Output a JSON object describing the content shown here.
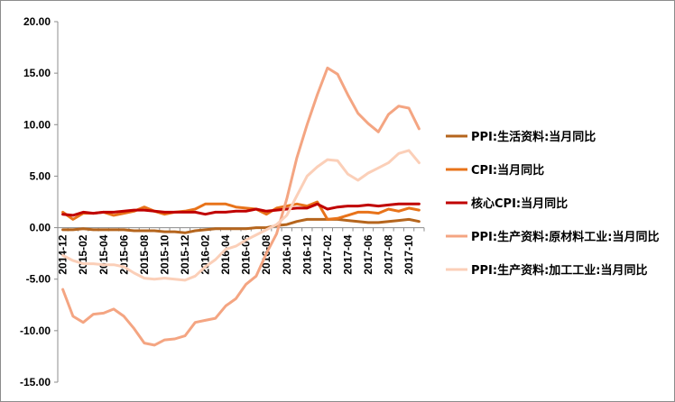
{
  "chart_data": {
    "type": "line",
    "title": "",
    "xlabel": "",
    "ylabel": "",
    "ylim": [
      -15,
      20
    ],
    "yticks": [
      20,
      15,
      10,
      5,
      0,
      -5,
      -10,
      -15
    ],
    "ytick_labels": [
      "20.00",
      "15.00",
      "10.00",
      "5.00",
      "0.00",
      "-5.00",
      "-10.00",
      "-15.00"
    ],
    "x": [
      "2014-12",
      "2015-01",
      "2015-02",
      "2015-03",
      "2015-04",
      "2015-05",
      "2015-06",
      "2015-07",
      "2015-08",
      "2015-09",
      "2015-10",
      "2015-11",
      "2015-12",
      "2016-01",
      "2016-02",
      "2016-03",
      "2016-04",
      "2016-05",
      "2016-06",
      "2016-07",
      "2016-08",
      "2016-09",
      "2016-10",
      "2016-11",
      "2016-12",
      "2017-01",
      "2017-02",
      "2017-03",
      "2017-04",
      "2017-05",
      "2017-06",
      "2017-07",
      "2017-08",
      "2017-09",
      "2017-10",
      "2017-11"
    ],
    "xtick_labels": [
      "2014-12",
      "2015-02",
      "2015-04",
      "2015-06",
      "2015-08",
      "2015-10",
      "2015-12",
      "2016-02",
      "2016-04",
      "2016-06",
      "2016-08",
      "2016-10",
      "2016-12",
      "2017-02",
      "2017-04",
      "2017-06",
      "2017-08",
      "2017-10"
    ],
    "legend_position": "right",
    "grid": false,
    "series": [
      {
        "name": "PPI:生活资料:当月同比",
        "color": "#b5651d",
        "width": 3,
        "values": [
          -0.2,
          -0.2,
          -0.1,
          -0.2,
          -0.2,
          -0.2,
          -0.2,
          -0.3,
          -0.3,
          -0.3,
          -0.4,
          -0.4,
          -0.5,
          -0.3,
          -0.2,
          -0.1,
          -0.1,
          -0.1,
          -0.1,
          0.0,
          0.0,
          0.2,
          0.3,
          0.6,
          0.8,
          0.8,
          0.8,
          0.8,
          0.7,
          0.6,
          0.5,
          0.5,
          0.6,
          0.7,
          0.8,
          0.6
        ]
      },
      {
        "name": "CPI:当月同比",
        "color": "#e8731a",
        "width": 3,
        "values": [
          1.5,
          0.8,
          1.4,
          1.4,
          1.5,
          1.2,
          1.4,
          1.6,
          2.0,
          1.6,
          1.3,
          1.5,
          1.6,
          1.8,
          2.3,
          2.3,
          2.3,
          2.0,
          1.9,
          1.8,
          1.3,
          1.9,
          2.1,
          2.3,
          2.1,
          2.5,
          0.8,
          0.9,
          1.2,
          1.5,
          1.5,
          1.4,
          1.8,
          1.6,
          1.9,
          1.7
        ]
      },
      {
        "name": "核心CPI:当月同比",
        "color": "#c00000",
        "width": 3,
        "values": [
          1.3,
          1.2,
          1.5,
          1.4,
          1.5,
          1.5,
          1.6,
          1.7,
          1.7,
          1.6,
          1.5,
          1.5,
          1.5,
          1.5,
          1.3,
          1.5,
          1.5,
          1.6,
          1.6,
          1.8,
          1.6,
          1.7,
          1.8,
          1.9,
          1.9,
          2.3,
          1.8,
          2.0,
          2.1,
          2.1,
          2.2,
          2.1,
          2.2,
          2.3,
          2.3,
          2.3
        ]
      },
      {
        "name": "PPI:生产资料:原材料工业:当月同比",
        "color": "#f4a582",
        "width": 3,
        "values": [
          -6.0,
          -8.6,
          -9.2,
          -8.4,
          -8.3,
          -7.9,
          -8.6,
          -9.8,
          -11.2,
          -11.4,
          -10.9,
          -10.8,
          -10.5,
          -9.2,
          -9.0,
          -8.8,
          -7.6,
          -6.9,
          -5.5,
          -4.7,
          -2.5,
          -0.6,
          2.8,
          6.8,
          10.0,
          12.9,
          15.5,
          14.9,
          12.9,
          11.1,
          10.1,
          9.3,
          11.0,
          11.8,
          11.6,
          9.6
        ]
      },
      {
        "name": "PPI:生产资料:加工工业:当月同比",
        "color": "#fbcfb8",
        "width": 3,
        "values": [
          -2.7,
          -3.2,
          -3.5,
          -3.5,
          -3.6,
          -3.6,
          -3.8,
          -4.4,
          -4.9,
          -5.0,
          -4.9,
          -5.0,
          -5.1,
          -4.7,
          -3.8,
          -3.1,
          -2.1,
          -1.8,
          -1.2,
          -0.7,
          -0.2,
          0.3,
          1.2,
          3.1,
          5.0,
          5.9,
          6.6,
          6.5,
          5.2,
          4.6,
          5.3,
          5.8,
          6.3,
          7.2,
          7.5,
          6.3
        ]
      }
    ]
  }
}
